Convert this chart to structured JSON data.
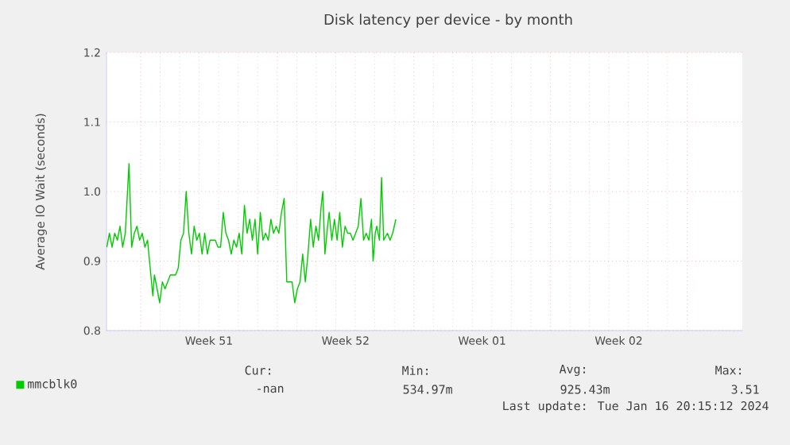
{
  "chart_data": {
    "type": "line",
    "title": "Disk latency per device - by month",
    "ylabel": "Average IO Wait (seconds)",
    "xlim": [
      "2023-12-16T06:00",
      "2024-01-17T20:00"
    ],
    "xticks": [
      {
        "value": "2023-12-18",
        "label": null
      },
      {
        "value": "2023-12-25",
        "label": null
      },
      {
        "value": "2024-01-01",
        "label": null
      },
      {
        "value": "2024-01-08",
        "label": null
      },
      {
        "value": "2024-01-15",
        "label": null
      },
      {
        "value": "2023-12-21T12:00",
        "label": "Week 51"
      },
      {
        "value": "2023-12-28T12:00",
        "label": "Week 52"
      },
      {
        "value": "2024-01-04T12:00",
        "label": "Week 01"
      },
      {
        "value": "2024-01-11T12:00",
        "label": "Week 02"
      }
    ],
    "ylim": [
      0.8,
      1.2
    ],
    "yticks": [
      {
        "value": 0.8,
        "label": "0.8"
      },
      {
        "value": 0.9,
        "label": "0.9"
      },
      {
        "value": 1.0,
        "label": "1.0"
      },
      {
        "value": 1.1,
        "label": "1.1"
      },
      {
        "value": 1.2,
        "label": "1.2"
      }
    ],
    "grid": true,
    "legend": "bottom",
    "line_style": "solid",
    "annotations": [
      "Cur:",
      "Min:",
      "Avg:",
      "Max:",
      "-nan",
      "534.97m",
      "925.43m",
      "3.51",
      "Last update:  Tue Jan 16 20:15:12 2024"
    ],
    "series": [
      {
        "name": "mmcblk0",
        "color": "#00cc00",
        "x": [
          "2023-12-16T06:19",
          "2023-12-16T09:35",
          "2023-12-16T12:50",
          "2023-12-16T16:05",
          "2023-12-16T19:21",
          "2023-12-16T22:36",
          "2023-12-17T01:52",
          "2023-12-17T05:07",
          "2023-12-17T09:40",
          "2023-12-17T12:56",
          "2023-12-17T16:11",
          "2023-12-17T19:26",
          "2023-12-17T22:42",
          "2023-12-18T01:57",
          "2023-12-18T05:13",
          "2023-12-18T08:28",
          "2023-12-18T11:43",
          "2023-12-18T14:59",
          "2023-12-18T16:56",
          "2023-12-18T20:11",
          "2023-12-18T23:26",
          "2023-12-19T02:42",
          "2023-12-19T05:58",
          "2023-12-19T09:13",
          "2023-12-19T12:28",
          "2023-12-19T15:43",
          "2023-12-19T18:59",
          "2023-12-19T22:14",
          "2023-12-20T01:29",
          "2023-12-20T04:45",
          "2023-12-20T08:00",
          "2023-12-20T11:16",
          "2023-12-20T14:31",
          "2023-12-20T17:46",
          "2023-12-20T21:02",
          "2023-12-21T00:17",
          "2023-12-21T03:32",
          "2023-12-21T06:48",
          "2023-12-21T10:03",
          "2023-12-21T13:19",
          "2023-12-21T16:34",
          "2023-12-21T19:49",
          "2023-12-21T23:05",
          "2023-12-22T02:20",
          "2023-12-22T05:35",
          "2023-12-22T08:50",
          "2023-12-22T12:06",
          "2023-12-22T15:22",
          "2023-12-22T18:37",
          "2023-12-22T21:52",
          "2023-12-23T01:07",
          "2023-12-23T04:23",
          "2023-12-23T07:38",
          "2023-12-23T10:53",
          "2023-12-23T14:09",
          "2023-12-23T17:24",
          "2023-12-23T20:40",
          "2023-12-23T23:55",
          "2023-12-24T03:10",
          "2023-12-24T06:26",
          "2023-12-24T09:41",
          "2023-12-24T12:56",
          "2023-12-24T16:12",
          "2023-12-24T19:27",
          "2023-12-24T22:43",
          "2023-12-25T01:58",
          "2023-12-25T05:13",
          "2023-12-25T08:29",
          "2023-12-25T11:44",
          "2023-12-25T14:59",
          "2023-12-25T18:14",
          "2023-12-25T21:30",
          "2023-12-26T00:46",
          "2023-12-26T04:01",
          "2023-12-26T07:16",
          "2023-12-26T10:31",
          "2023-12-26T13:47",
          "2023-12-26T17:02",
          "2023-12-26T20:17",
          "2023-12-26T23:33",
          "2023-12-27T02:48",
          "2023-12-27T06:04",
          "2023-12-27T08:01",
          "2023-12-27T10:37",
          "2023-12-27T13:52",
          "2023-12-27T15:50",
          "2023-12-27T19:05",
          "2023-12-27T22:20",
          "2023-12-28T01:36",
          "2023-12-28T04:51",
          "2023-12-28T08:07",
          "2023-12-28T11:22",
          "2023-12-28T14:37",
          "2023-12-28T17:53",
          "2023-12-28T21:08",
          "2023-12-29T00:23",
          "2023-12-29T03:38",
          "2023-12-29T06:54",
          "2023-12-29T10:10",
          "2023-12-29T13:25",
          "2023-12-29T16:40",
          "2023-12-29T19:55",
          "2023-12-29T21:53",
          "2023-12-30T00:29",
          "2023-12-30T02:26",
          "2023-12-30T05:41",
          "2023-12-30T08:18",
          "2023-12-30T10:54",
          "2023-12-30T15:28",
          "2023-12-30T18:43",
          "2023-12-30T21:58",
          "2023-12-31T01:53"
        ],
        "values": [
          0.92,
          0.94,
          0.92,
          0.94,
          0.93,
          0.95,
          0.92,
          0.94,
          1.04,
          0.92,
          0.94,
          0.95,
          0.93,
          0.94,
          0.92,
          0.93,
          0.89,
          0.85,
          0.88,
          0.86,
          0.84,
          0.87,
          0.86,
          0.87,
          0.88,
          0.88,
          0.88,
          0.89,
          0.93,
          0.94,
          1.0,
          0.94,
          0.91,
          0.95,
          0.93,
          0.94,
          0.91,
          0.94,
          0.91,
          0.93,
          0.93,
          0.93,
          0.92,
          0.92,
          0.97,
          0.94,
          0.93,
          0.91,
          0.93,
          0.92,
          0.94,
          0.91,
          0.98,
          0.94,
          0.96,
          0.93,
          0.96,
          0.91,
          0.97,
          0.93,
          0.94,
          0.93,
          0.96,
          0.94,
          0.95,
          0.94,
          0.97,
          0.99,
          0.87,
          0.87,
          0.87,
          0.84,
          0.86,
          0.87,
          0.91,
          0.87,
          0.91,
          0.96,
          0.92,
          0.95,
          0.93,
          0.98,
          1.0,
          0.91,
          0.95,
          0.97,
          0.93,
          0.96,
          0.93,
          0.97,
          0.92,
          0.95,
          0.94,
          0.94,
          0.93,
          0.94,
          0.95,
          0.99,
          0.93,
          0.94,
          0.93,
          0.96,
          0.9,
          0.94,
          0.95,
          0.93,
          1.02,
          0.93,
          0.94,
          0.93,
          0.94,
          0.96
        ]
      }
    ]
  }
}
